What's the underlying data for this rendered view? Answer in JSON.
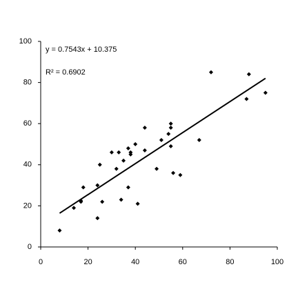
{
  "chart_data": {
    "type": "scatter",
    "x": [
      8,
      14,
      17,
      17,
      18,
      24,
      24,
      25,
      26,
      30,
      32,
      33,
      34,
      35,
      37,
      37,
      38,
      38,
      40,
      41,
      44,
      44,
      49,
      51,
      54,
      55,
      55,
      55,
      56,
      59,
      67,
      72,
      87,
      88,
      95
    ],
    "series": [
      {
        "color": "#000000",
        "values": [
          8,
          19,
          22,
          22.5,
          29,
          14,
          30,
          40,
          22,
          46,
          38,
          46,
          23,
          42,
          29,
          48,
          46,
          45,
          50,
          21,
          58,
          47,
          38,
          52,
          55,
          58,
          60,
          49,
          36,
          35,
          52,
          85,
          72,
          84,
          75
        ]
      }
    ],
    "trendline": {
      "slope": 0.7543,
      "intercept": 10.375,
      "color": "#000000",
      "equation_label": "y = 0.7543x + 10.375",
      "r_squared_label": "R² = 0.6902"
    },
    "xlim": [
      0,
      100
    ],
    "xticks": [
      0,
      20,
      40,
      60,
      80,
      100
    ],
    "ylim": [
      0,
      100
    ],
    "yticks": [
      0,
      20,
      40,
      60,
      80,
      100
    ],
    "grid": false
  }
}
